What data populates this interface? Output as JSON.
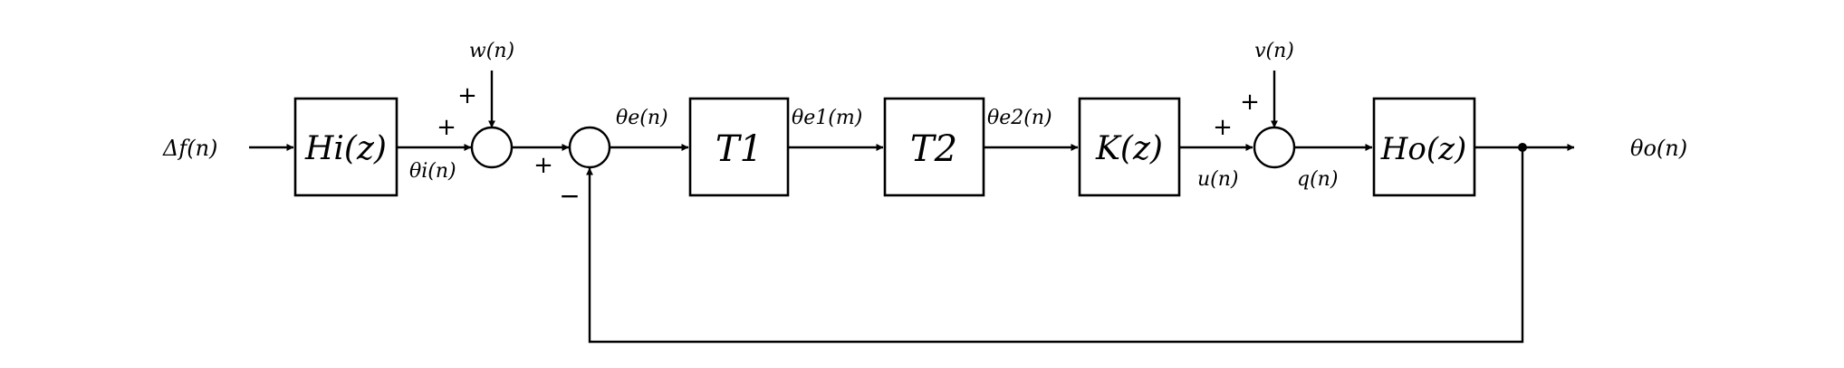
{
  "diagram": {
    "input_label": "Δf(n)",
    "output_label": "θo(n)",
    "blocks": {
      "hi": "Hi(z)",
      "t1": "T1",
      "t2": "T2",
      "k": "K(z)",
      "ho": "Ho(z)"
    },
    "signals": {
      "w": "w(n)",
      "v": "v(n)",
      "theta_i": "θi(n)",
      "theta_e": "θe(n)",
      "theta_e1": "θe1(m)",
      "theta_e2": "θe2(n)",
      "u": "u(n)",
      "q": "q(n)"
    },
    "signs": {
      "plus": "+",
      "minus": "−"
    }
  }
}
